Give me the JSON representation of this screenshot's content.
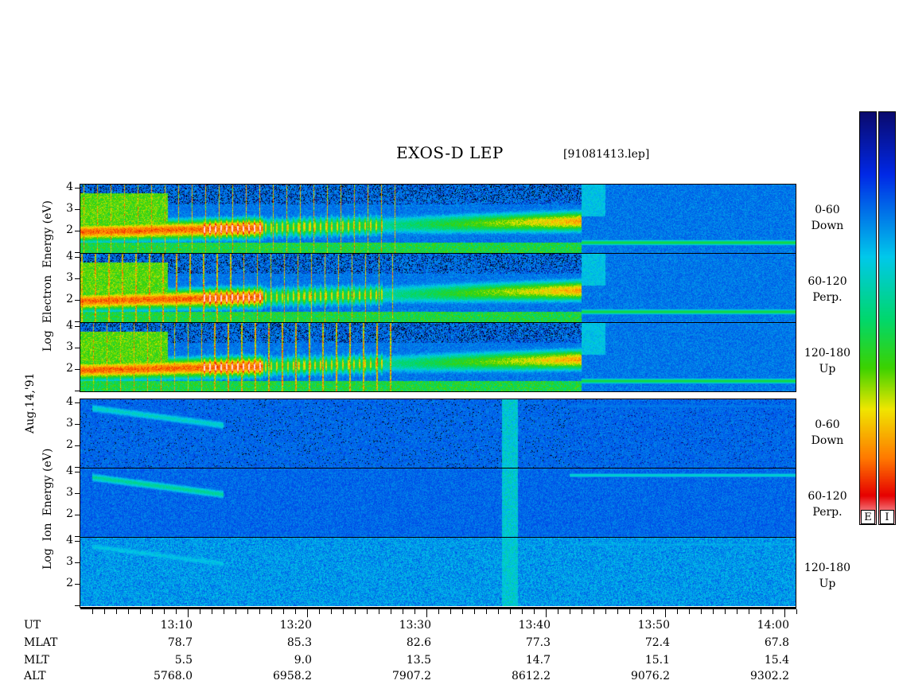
{
  "header": {
    "title": "EXOS-D LEP",
    "file": "[91081413.lep]"
  },
  "y_axis": {
    "ticks": [
      "4",
      "3",
      "2",
      "1"
    ],
    "electron_label": [
      "Log",
      "Electron",
      "Energy",
      "(eV)"
    ],
    "ion_label": [
      "Log",
      "Ion",
      "Energy",
      "(eV)"
    ],
    "date_label": "Aug.14,'91"
  },
  "panels": [
    {
      "species": "electron",
      "angle": "0-60",
      "direction": "Down"
    },
    {
      "species": "electron",
      "angle": "60-120",
      "direction": "Perp."
    },
    {
      "species": "electron",
      "angle": "120-180",
      "direction": "Up"
    },
    {
      "species": "ion",
      "angle": "0-60",
      "direction": "Down"
    },
    {
      "species": "ion",
      "angle": "60-120",
      "direction": "Perp."
    },
    {
      "species": "ion",
      "angle": "120-180",
      "direction": "Up"
    }
  ],
  "colorbar": {
    "labels": [
      "E",
      "I"
    ]
  },
  "table": {
    "row_labels": [
      "UT",
      "MLAT",
      "MLT",
      "ALT"
    ],
    "columns": [
      {
        "UT": "13:10",
        "MLAT": "78.7",
        "MLT": "5.5",
        "ALT": "5768.0"
      },
      {
        "UT": "13:20",
        "MLAT": "85.3",
        "MLT": "9.0",
        "ALT": "6958.2"
      },
      {
        "UT": "13:30",
        "MLAT": "82.6",
        "MLT": "13.5",
        "ALT": "7907.2"
      },
      {
        "UT": "13:40",
        "MLAT": "77.3",
        "MLT": "14.7",
        "ALT": "8612.2"
      },
      {
        "UT": "13:50",
        "MLAT": "72.4",
        "MLT": "15.1",
        "ALT": "9076.2"
      },
      {
        "UT": "14:00",
        "MLAT": "67.8",
        "MLT": "15.4",
        "ALT": "9302.2"
      }
    ]
  },
  "chart_data": {
    "type": "heatmap",
    "title": "EXOS-D LEP",
    "x_start_ut": "13:01",
    "x_end_ut": "14:01",
    "ylim": [
      1,
      4.2
    ],
    "ylabel": "Log Energy (eV)",
    "major_ticks_ut": [
      "13:10",
      "13:20",
      "13:30",
      "13:40",
      "13:50",
      "14:00"
    ],
    "electron_features": {
      "band_end_ut": "13:43",
      "band_start_log_energy": 2.0,
      "band_end_log_energy": 2.5,
      "post_boundary_log_energy": 1.5
    },
    "ion_features": {
      "band_start_ut": "13:02",
      "band_end_ut": "13:13",
      "band_start_log_energy": 3.8,
      "band_end_log_energy": 3.0,
      "burst_ut": "13:37",
      "post_boundary_ut": "13:42",
      "post_boundary_log_energy": 3.9
    }
  }
}
